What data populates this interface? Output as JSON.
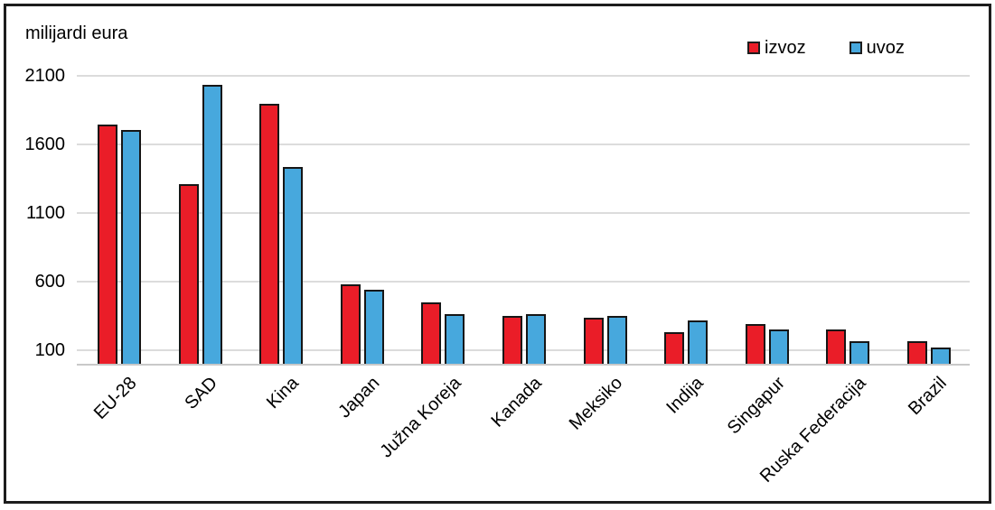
{
  "chart_data": {
    "type": "bar",
    "title": "milijardi eura",
    "categories": [
      "EU-28",
      "SAD",
      "Kina",
      "Japan",
      "Južna Koreja",
      "Kanada",
      "Meksiko",
      "Indija",
      "Singapur",
      "Ruska Federacija",
      "Brazil"
    ],
    "series": [
      {
        "name": "izvoz",
        "color": "#ea1d28",
        "values": [
          1745,
          1315,
          1900,
          580,
          450,
          355,
          340,
          235,
          295,
          255,
          170
        ]
      },
      {
        "name": "uvoz",
        "color": "#47a8dd",
        "values": [
          1710,
          2035,
          1440,
          545,
          365,
          365,
          355,
          320,
          255,
          165,
          120
        ]
      }
    ],
    "y_ticks": [
      100,
      600,
      1100,
      1600,
      2100
    ],
    "ylim": [
      0,
      2200
    ],
    "ylabel": "milijardi eura",
    "xlabel": "",
    "grid": true,
    "legend_position": "top-right",
    "colors": {
      "grid": "#dcdcdc",
      "bar_outline": "#161616",
      "frame": "#1d1d1d"
    }
  }
}
